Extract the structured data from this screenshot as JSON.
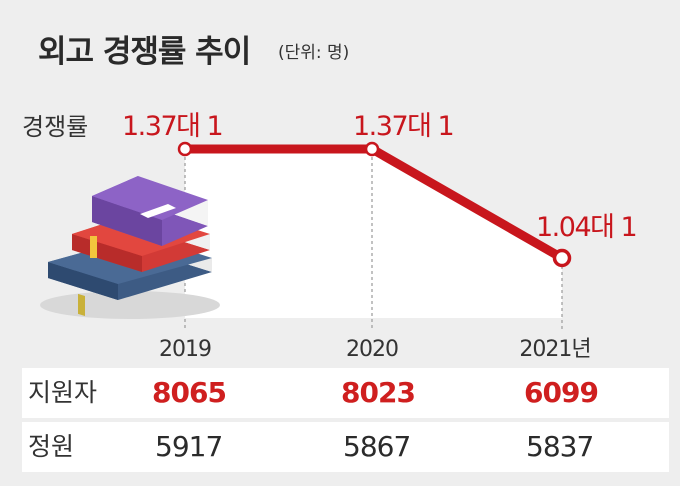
{
  "header": {
    "title": "외고 경쟁률 추이",
    "unit": "(단위: 명)"
  },
  "chart_data": {
    "type": "line",
    "x": [
      "2019",
      "2020",
      "2021년"
    ],
    "series": [
      {
        "name": "경쟁률",
        "values": [
          1.37,
          1.37,
          1.04
        ],
        "labels": [
          "1.37대 1",
          "1.37대 1",
          "1.04대 1"
        ]
      }
    ],
    "ylim": [
      0.9,
      1.45
    ],
    "grid": false,
    "line_color": "#c8161d"
  },
  "table": {
    "rows": [
      {
        "label": "지원자",
        "values": [
          "8065",
          "8023",
          "6099"
        ],
        "emphasis": true
      },
      {
        "label": "정원",
        "values": [
          "5917",
          "5867",
          "5837"
        ],
        "emphasis": false
      }
    ]
  },
  "colors": {
    "accent": "#c8161d",
    "background": "#eeeeee"
  }
}
